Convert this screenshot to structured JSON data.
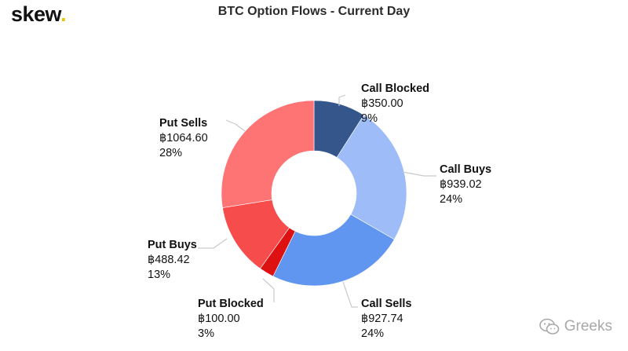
{
  "header": {
    "logo_text": "skew",
    "logo_dot": ".",
    "logo_dot_color": "#f2c200"
  },
  "chart_data": {
    "type": "pie",
    "donut": true,
    "title": "BTC Option Flows - Current Day",
    "currency_symbol": "฿",
    "slices": [
      {
        "label": "Call Blocked",
        "value": 350.0,
        "value_text": "฿350.00",
        "percent_text": "9%",
        "color": "#34568b"
      },
      {
        "label": "Call Buys",
        "value": 939.02,
        "value_text": "฿939.02",
        "percent_text": "24%",
        "color": "#9dbcf8"
      },
      {
        "label": "Call Sells",
        "value": 927.74,
        "value_text": "฿927.74",
        "percent_text": "24%",
        "color": "#6196f0"
      },
      {
        "label": "Put Blocked",
        "value": 100.0,
        "value_text": "฿100.00",
        "percent_text": "3%",
        "color": "#dd1111"
      },
      {
        "label": "Put Buys",
        "value": 488.42,
        "value_text": "฿488.42",
        "percent_text": "13%",
        "color": "#f74c4c"
      },
      {
        "label": "Put Sells",
        "value": 1064.6,
        "value_text": "฿1064.60",
        "percent_text": "28%",
        "color": "#fe7374"
      }
    ]
  },
  "watermark": {
    "text": "Greeks",
    "icon": "wechat-icon"
  }
}
